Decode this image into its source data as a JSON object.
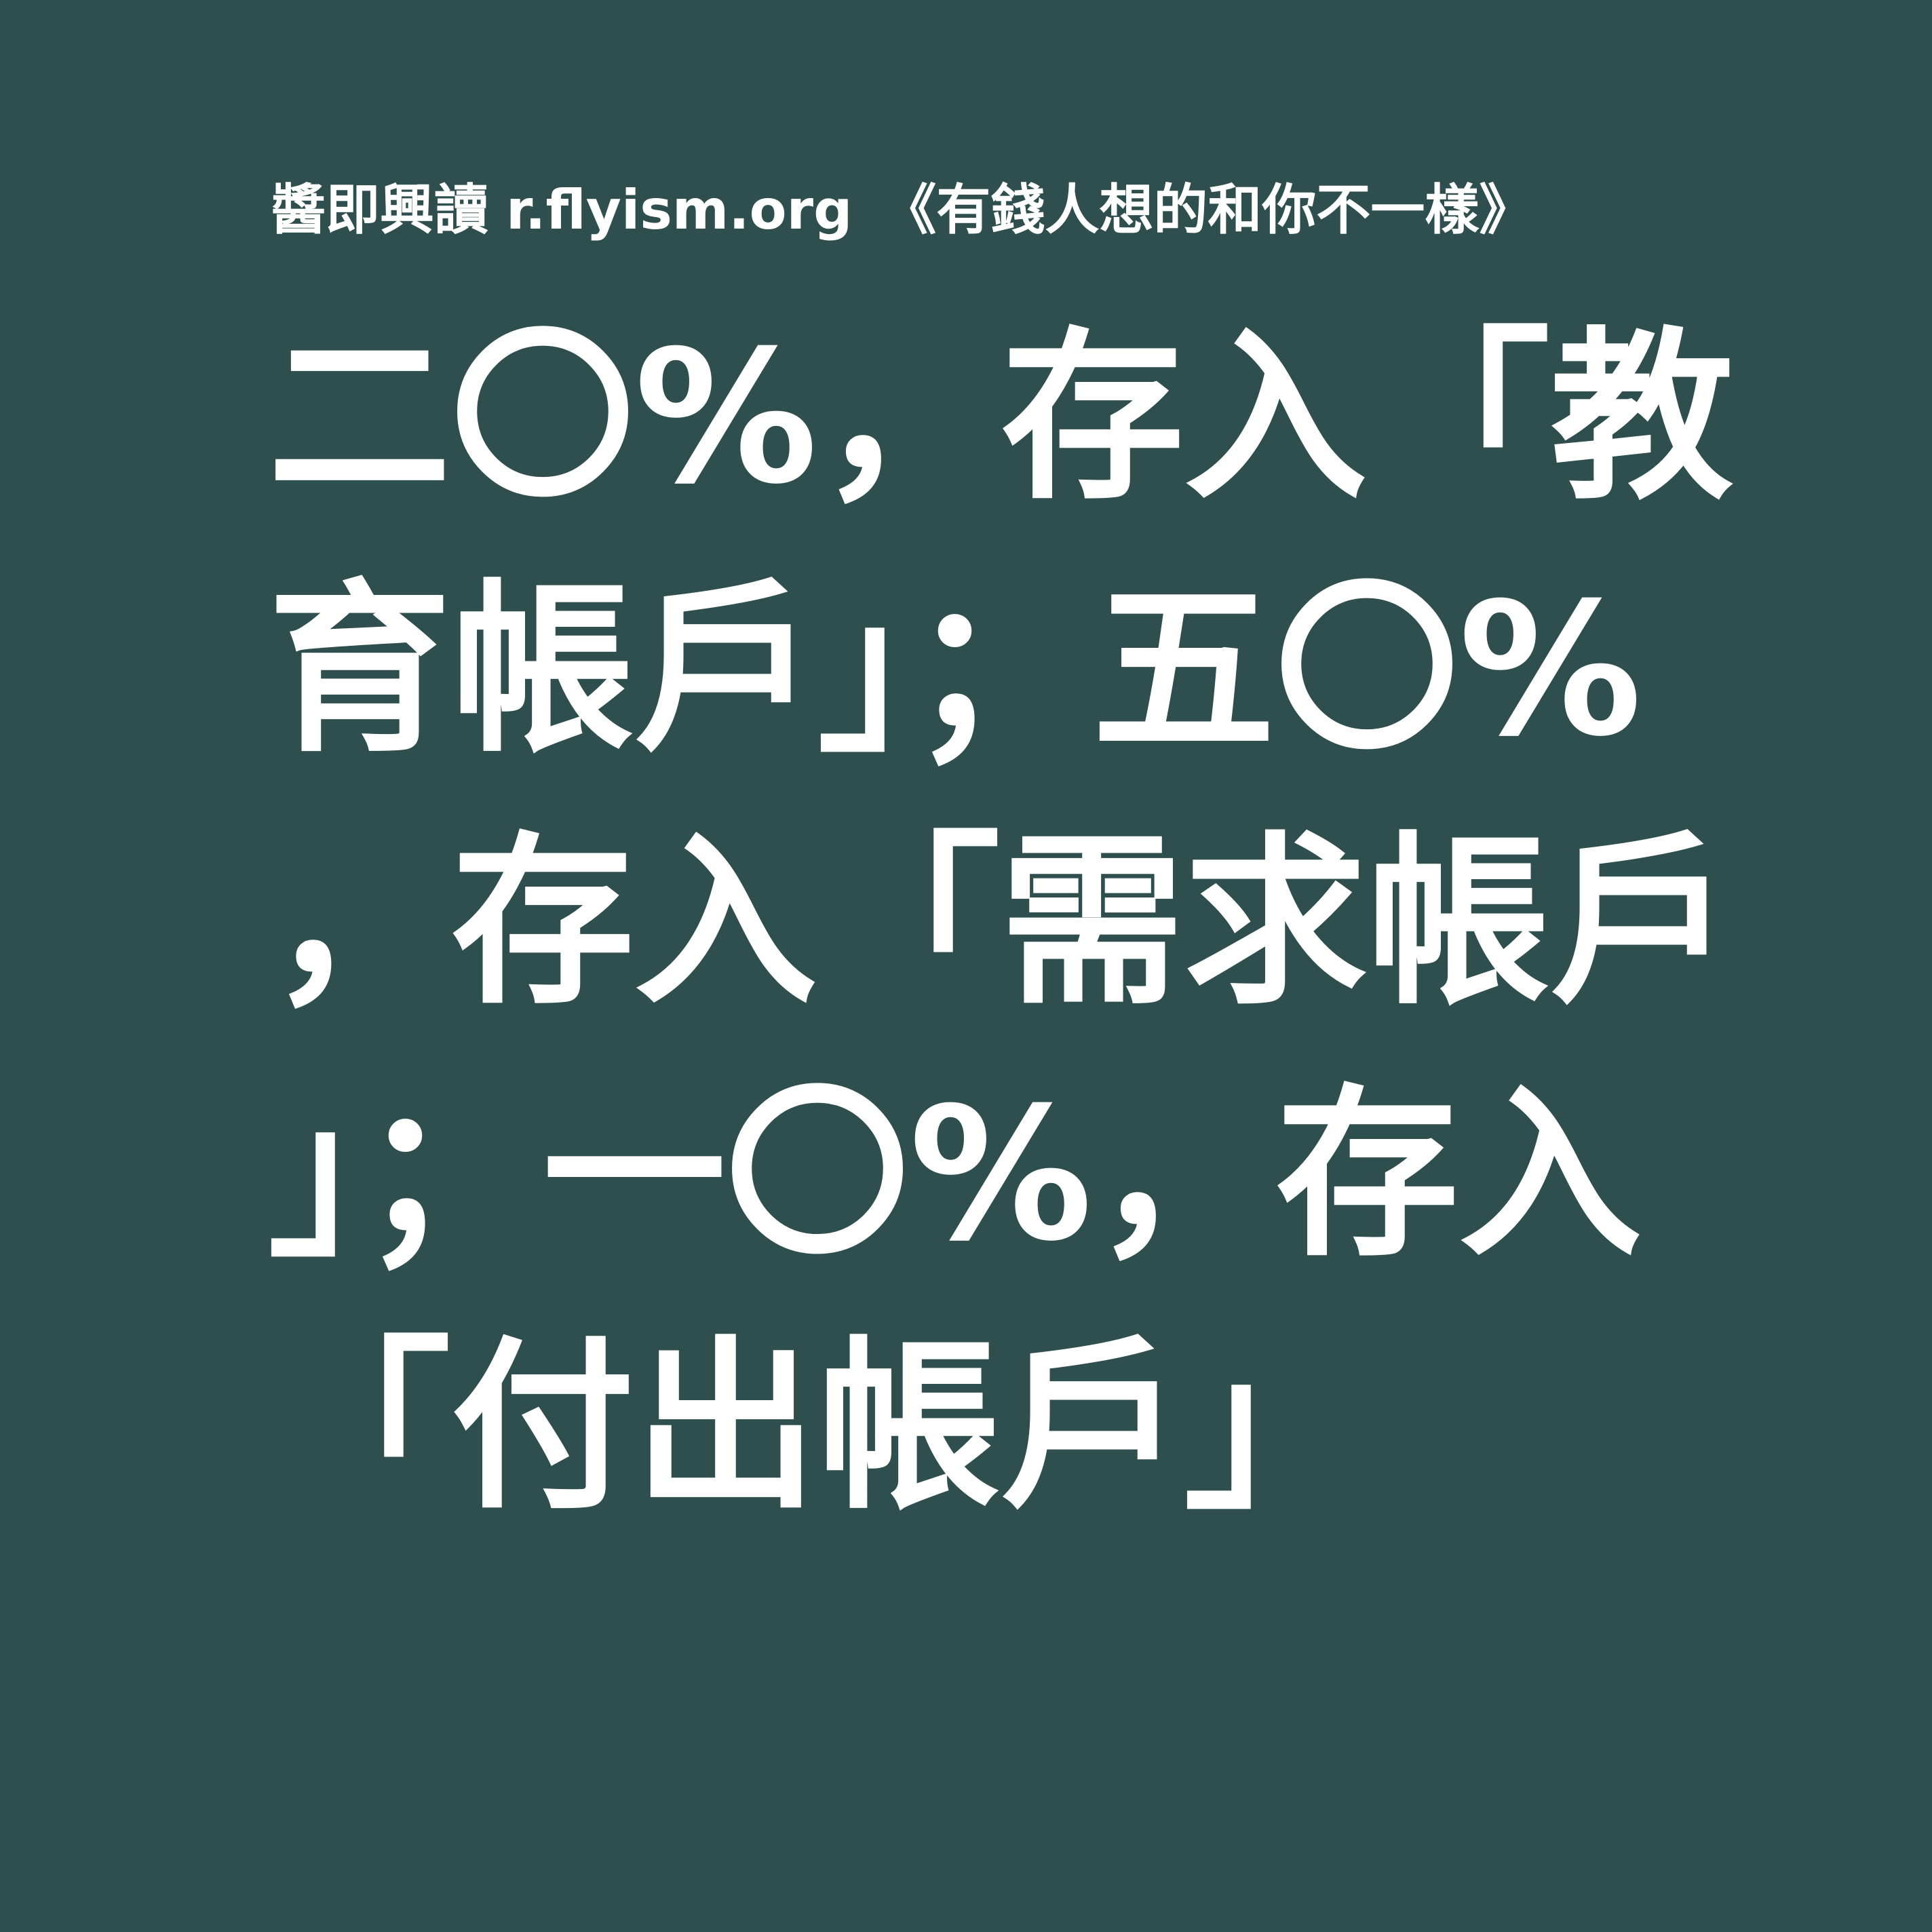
{
  "colors": {
    "background": "#2f4f4f",
    "text": "#ffffff"
  },
  "source": {
    "brand": "醬即興讀",
    "site": "r.flyism.org",
    "book": "《有錢人想的和你不一樣》"
  },
  "quote": {
    "lines": [
      "二〇%，存入「教",
      "育帳戶」；五〇%",
      "，存入「需求帳戶",
      "」；一〇%，存入",
      "「付出帳戶」"
    ]
  }
}
